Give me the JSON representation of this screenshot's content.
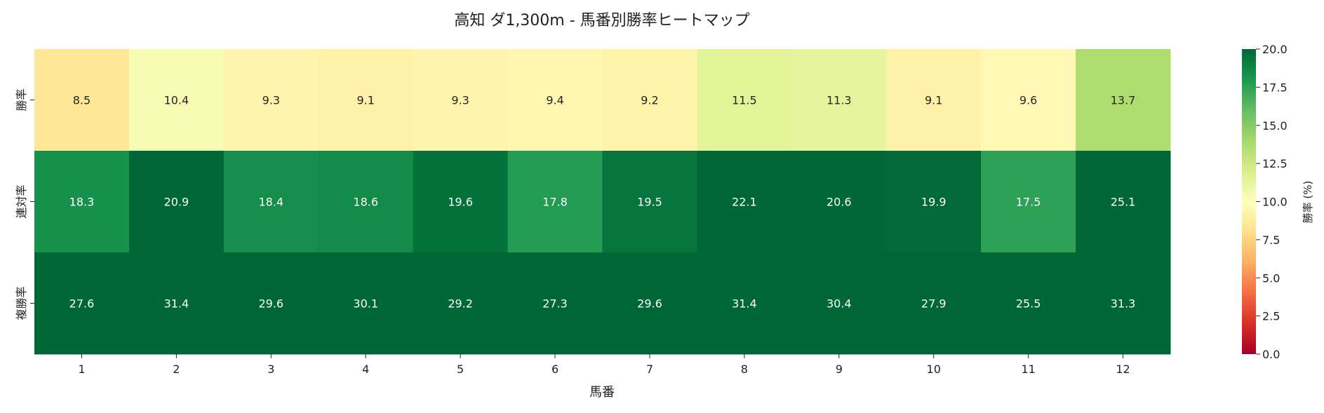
{
  "chart_data": {
    "type": "heatmap",
    "title": "高知 ダ1,300m - 馬番別勝率ヒートマップ",
    "xlabel": "馬番",
    "ylabel": "",
    "x_categories": [
      "1",
      "2",
      "3",
      "4",
      "5",
      "6",
      "7",
      "8",
      "9",
      "10",
      "11",
      "12"
    ],
    "y_categories": [
      "勝率",
      "連対率",
      "複勝率"
    ],
    "values": [
      [
        8.5,
        10.4,
        9.3,
        9.1,
        9.3,
        9.4,
        9.2,
        11.5,
        11.3,
        9.1,
        9.6,
        13.7
      ],
      [
        18.3,
        20.9,
        18.4,
        18.6,
        19.6,
        17.8,
        19.5,
        22.1,
        20.6,
        19.9,
        17.5,
        25.1
      ],
      [
        27.6,
        31.4,
        29.6,
        30.1,
        29.2,
        27.3,
        29.6,
        31.4,
        30.4,
        27.9,
        25.5,
        31.3
      ]
    ],
    "colormap": "RdYlGn",
    "vmin": 0,
    "vmax": 20,
    "colorbar": {
      "label": "勝率 (%)",
      "ticks": [
        "0.0",
        "2.5",
        "5.0",
        "7.5",
        "10.0",
        "12.5",
        "15.0",
        "17.5",
        "20.0"
      ]
    },
    "colormap_stops": [
      "#a50026",
      "#d73027",
      "#f46d43",
      "#fdae61",
      "#fee08b",
      "#ffffbf",
      "#d9ef8b",
      "#a6d96a",
      "#66bd63",
      "#1a9850",
      "#006837"
    ]
  }
}
